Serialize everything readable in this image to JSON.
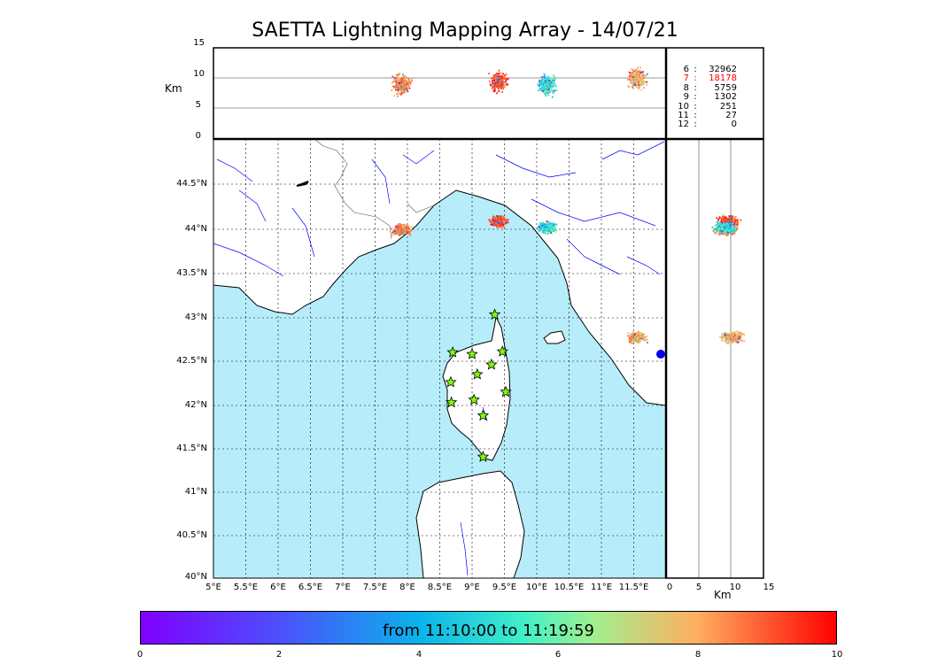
{
  "title": "SAETTA Lightning Mapping Array - 14/07/21",
  "units": {
    "top_panel": "Km",
    "right_panel": "Km"
  },
  "altitude_axis": {
    "ticks": [
      "15",
      "10",
      "5",
      "0"
    ]
  },
  "altitude_axis_x": {
    "ticks": [
      "0",
      "5",
      "10",
      "15"
    ]
  },
  "lat_axis": {
    "ticks": [
      "44.5°N",
      "44°N",
      "43.5°N",
      "43°N",
      "42.5°N",
      "42°N",
      "41.5°N",
      "41°N",
      "40.5°N",
      "40°N"
    ]
  },
  "lon_axis": {
    "ticks": [
      "5°E",
      "5.5°E",
      "6°E",
      "6.5°E",
      "7°E",
      "7.5°E",
      "8°E",
      "8.5°E",
      "9°E",
      "9.5°E",
      "10°E",
      "10.5°E",
      "11°E",
      "11.5°E"
    ]
  },
  "stats": [
    {
      "h": "6",
      "count": "32962",
      "color": "#000000"
    },
    {
      "h": "7",
      "count": "18178",
      "color": "#ff0000"
    },
    {
      "h": "8",
      "count": "5759",
      "color": "#000000"
    },
    {
      "h": "9",
      "count": "1302",
      "color": "#000000"
    },
    {
      "h": "10",
      "count": "251",
      "color": "#000000"
    },
    {
      "h": "11",
      "count": "27",
      "color": "#000000"
    },
    {
      "h": "12",
      "count": "0",
      "color": "#000000"
    }
  ],
  "colorbar": {
    "label": "from 11:10:00 to 11:19:59",
    "ticks": [
      "0",
      "2",
      "4",
      "6",
      "8",
      "10"
    ],
    "colormap": "rainbow"
  },
  "colors": {
    "sea": "#b7edfb",
    "rivers": "#0000ff",
    "stations": "#7fff00",
    "dominant_sources": "#ff4422"
  },
  "map_features": {
    "stations": "star-markers",
    "grid": "dotted"
  },
  "chart_data": {
    "type": "scatter",
    "xlim": [
      5,
      12
    ],
    "ylim": [
      40,
      45
    ],
    "altitude_range_km": [
      0,
      15
    ],
    "time_range_minutes": [
      0,
      10
    ],
    "stations": [
      {
        "lon": 9.35,
        "lat": 43.0
      },
      {
        "lon": 8.7,
        "lat": 42.57
      },
      {
        "lon": 9.0,
        "lat": 42.55
      },
      {
        "lon": 9.47,
        "lat": 42.58
      },
      {
        "lon": 9.3,
        "lat": 42.43
      },
      {
        "lon": 9.08,
        "lat": 42.32
      },
      {
        "lon": 8.67,
        "lat": 42.23
      },
      {
        "lon": 9.52,
        "lat": 42.12
      },
      {
        "lon": 9.03,
        "lat": 42.03
      },
      {
        "lon": 8.68,
        "lat": 42.0
      },
      {
        "lon": 9.17,
        "lat": 41.85
      },
      {
        "lon": 9.17,
        "lat": 41.38
      }
    ],
    "source_clusters": [
      {
        "lon": 7.9,
        "lat": 43.98,
        "alt_km": 9,
        "time_min": 8.5
      },
      {
        "lon": 9.4,
        "lat": 44.07,
        "alt_km": 9.5,
        "time_min": 9.2
      },
      {
        "lon": 10.15,
        "lat": 44.0,
        "alt_km": 9,
        "time_min": 5
      },
      {
        "lon": 11.55,
        "lat": 42.75,
        "alt_km": 10,
        "time_min": 8
      }
    ]
  }
}
